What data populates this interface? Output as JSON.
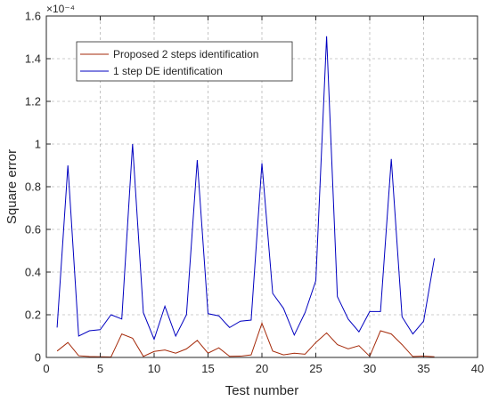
{
  "chart_data": {
    "type": "line",
    "title": "",
    "xlabel": "Test number",
    "ylabel": "Square error",
    "xlim": [
      0,
      40
    ],
    "ylim": [
      0,
      1.6
    ],
    "xticks": [
      0,
      5,
      10,
      15,
      20,
      25,
      30,
      35,
      40
    ],
    "yticks": [
      0,
      0.2,
      0.4,
      0.6,
      0.8,
      1.0,
      1.2,
      1.4,
      1.6
    ],
    "xtick_labels": [
      "0",
      "5",
      "10",
      "15",
      "20",
      "25",
      "30",
      "35",
      "40"
    ],
    "ytick_labels": [
      "0",
      "0.2",
      "0.4",
      "0.6",
      "0.8",
      "1",
      "1.2",
      "1.4",
      "1.6"
    ],
    "y_exponent_label": "×10⁻⁴",
    "grid": true,
    "legend_position": "top-left",
    "x": [
      1,
      2,
      3,
      4,
      5,
      6,
      7,
      8,
      9,
      10,
      11,
      12,
      13,
      14,
      15,
      16,
      17,
      18,
      19,
      20,
      21,
      22,
      23,
      24,
      25,
      26,
      27,
      28,
      29,
      30,
      31,
      32,
      33,
      34,
      35,
      36
    ],
    "series": [
      {
        "name": "Proposed 2 steps identification",
        "color": "#a52a0a",
        "values": [
          0.03,
          0.07,
          0.008,
          0.004,
          0.003,
          0.002,
          0.11,
          0.09,
          0.005,
          0.028,
          0.035,
          0.02,
          0.04,
          0.08,
          0.02,
          0.045,
          0.005,
          0.006,
          0.012,
          0.16,
          0.03,
          0.012,
          0.02,
          0.015,
          0.07,
          0.115,
          0.06,
          0.04,
          0.055,
          0.005,
          0.125,
          0.11,
          0.06,
          0.004,
          0.006,
          0.003
        ]
      },
      {
        "name": "1 step DE identification",
        "color": "#0000c0",
        "values": [
          0.14,
          0.9,
          0.1,
          0.125,
          0.13,
          0.2,
          0.18,
          1.0,
          0.21,
          0.085,
          0.24,
          0.1,
          0.2,
          0.925,
          0.205,
          0.195,
          0.14,
          0.17,
          0.175,
          0.91,
          0.3,
          0.23,
          0.105,
          0.21,
          0.36,
          1.505,
          0.285,
          0.18,
          0.12,
          0.215,
          0.215,
          0.93,
          0.19,
          0.11,
          0.17,
          0.465
        ]
      }
    ]
  }
}
